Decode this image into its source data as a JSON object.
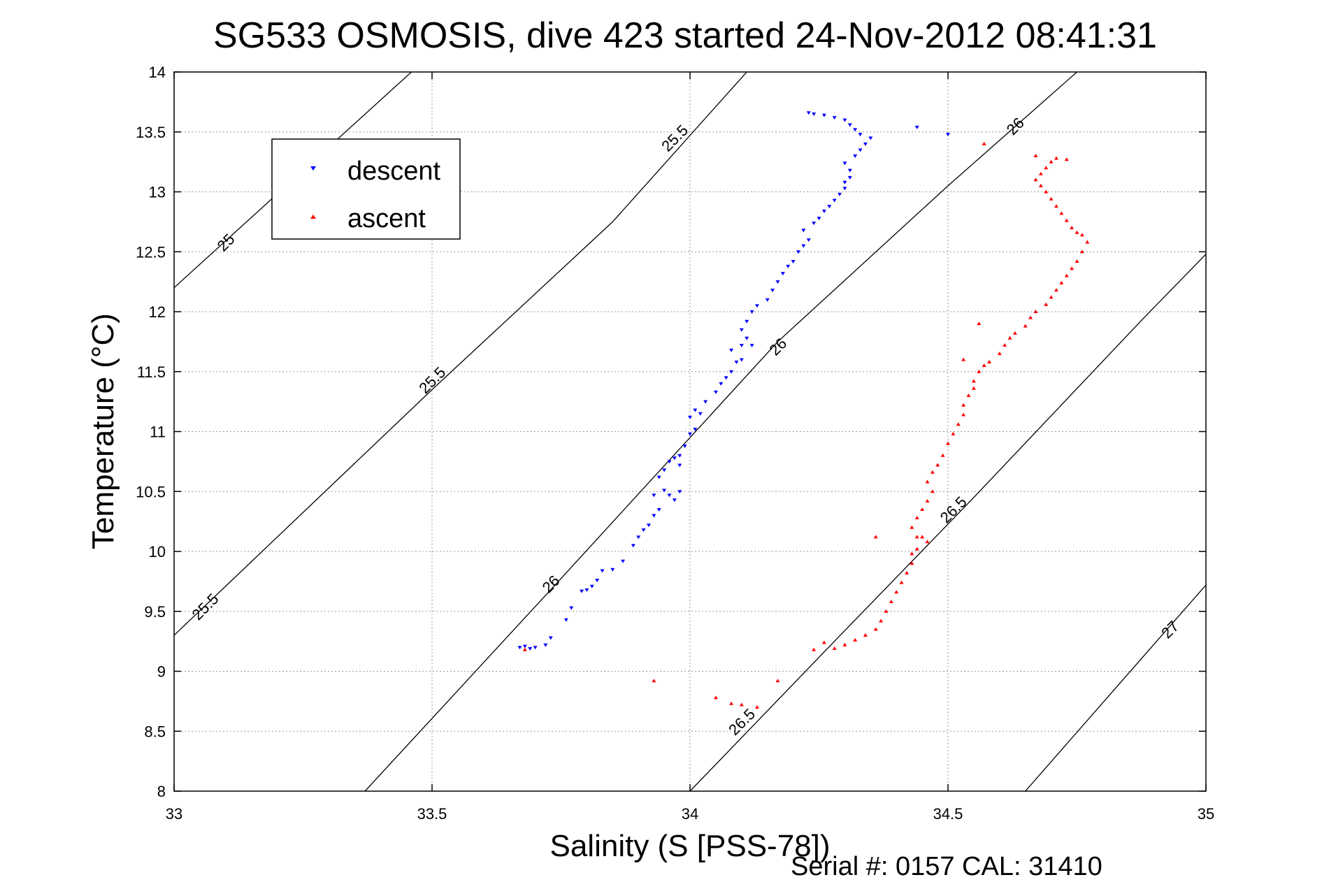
{
  "chart_data": {
    "type": "scatter",
    "title": "SG533 OSMOSIS, dive 423 started 24-Nov-2012 08:41:31",
    "xlabel": "Salinity (S [PSS-78])",
    "ylabel": "Temperature (°C)",
    "xlim": [
      33,
      35
    ],
    "ylim": [
      8,
      14
    ],
    "grid": true,
    "legend_position": "top-left",
    "x_ticks": [
      "33",
      "33.5",
      "34",
      "34.5",
      "35"
    ],
    "y_ticks": [
      "8",
      "8.5",
      "9",
      "9.5",
      "10",
      "10.5",
      "11",
      "11.5",
      "12",
      "12.5",
      "13",
      "13.5",
      "14"
    ],
    "footer": "Serial #: 0157  CAL: 31410",
    "series": [
      {
        "name": "descent",
        "color": "#0000ff",
        "marker": "triangle-down",
        "points": [
          [
            33.67,
            9.2
          ],
          [
            33.68,
            9.21
          ],
          [
            33.69,
            9.19
          ],
          [
            33.7,
            9.2
          ],
          [
            33.72,
            9.22
          ],
          [
            33.73,
            9.28
          ],
          [
            33.76,
            9.43
          ],
          [
            33.77,
            9.53
          ],
          [
            33.79,
            9.67
          ],
          [
            33.8,
            9.68
          ],
          [
            33.81,
            9.71
          ],
          [
            33.82,
            9.76
          ],
          [
            33.83,
            9.84
          ],
          [
            33.85,
            9.85
          ],
          [
            33.87,
            9.92
          ],
          [
            33.89,
            10.05
          ],
          [
            33.9,
            10.12
          ],
          [
            33.91,
            10.18
          ],
          [
            33.92,
            10.22
          ],
          [
            33.93,
            10.3
          ],
          [
            33.94,
            10.35
          ],
          [
            33.93,
            10.47
          ],
          [
            33.95,
            10.51
          ],
          [
            33.96,
            10.47
          ],
          [
            33.97,
            10.43
          ],
          [
            33.98,
            10.5
          ],
          [
            33.94,
            10.62
          ],
          [
            33.95,
            10.68
          ],
          [
            33.96,
            10.75
          ],
          [
            33.97,
            10.78
          ],
          [
            33.98,
            10.72
          ],
          [
            33.98,
            10.8
          ],
          [
            33.99,
            10.88
          ],
          [
            34.0,
            10.98
          ],
          [
            34.01,
            11.02
          ],
          [
            34.0,
            11.12
          ],
          [
            34.01,
            11.18
          ],
          [
            34.02,
            11.15
          ],
          [
            34.03,
            11.25
          ],
          [
            34.05,
            11.33
          ],
          [
            34.06,
            11.4
          ],
          [
            34.07,
            11.45
          ],
          [
            34.08,
            11.5
          ],
          [
            34.09,
            11.58
          ],
          [
            34.1,
            11.6
          ],
          [
            34.08,
            11.68
          ],
          [
            34.1,
            11.72
          ],
          [
            34.12,
            11.72
          ],
          [
            34.11,
            11.78
          ],
          [
            34.1,
            11.85
          ],
          [
            34.11,
            11.92
          ],
          [
            34.12,
            12.0
          ],
          [
            34.13,
            12.05
          ],
          [
            34.15,
            12.1
          ],
          [
            34.16,
            12.18
          ],
          [
            34.17,
            12.25
          ],
          [
            34.18,
            12.32
          ],
          [
            34.19,
            12.38
          ],
          [
            34.2,
            12.42
          ],
          [
            34.21,
            12.5
          ],
          [
            34.22,
            12.55
          ],
          [
            34.23,
            12.6
          ],
          [
            34.22,
            12.68
          ],
          [
            34.24,
            12.74
          ],
          [
            34.25,
            12.78
          ],
          [
            34.26,
            12.84
          ],
          [
            34.27,
            12.88
          ],
          [
            34.28,
            12.93
          ],
          [
            34.29,
            12.98
          ],
          [
            34.3,
            13.03
          ],
          [
            34.3,
            13.08
          ],
          [
            34.31,
            13.12
          ],
          [
            34.31,
            13.18
          ],
          [
            34.3,
            13.24
          ],
          [
            34.32,
            13.3
          ],
          [
            34.33,
            13.35
          ],
          [
            34.34,
            13.4
          ],
          [
            34.35,
            13.45
          ],
          [
            34.33,
            13.48
          ],
          [
            34.32,
            13.52
          ],
          [
            34.31,
            13.56
          ],
          [
            34.3,
            13.6
          ],
          [
            34.28,
            13.62
          ],
          [
            34.26,
            13.64
          ],
          [
            34.24,
            13.65
          ],
          [
            34.23,
            13.66
          ],
          [
            34.44,
            13.54
          ],
          [
            34.5,
            13.48
          ]
        ]
      },
      {
        "name": "ascent",
        "color": "#ff0000",
        "marker": "triangle-up",
        "points": [
          [
            33.68,
            9.18
          ],
          [
            33.93,
            8.92
          ],
          [
            34.05,
            8.78
          ],
          [
            34.08,
            8.73
          ],
          [
            34.1,
            8.72
          ],
          [
            34.13,
            8.7
          ],
          [
            34.17,
            8.92
          ],
          [
            34.24,
            9.18
          ],
          [
            34.26,
            9.24
          ],
          [
            34.28,
            9.19
          ],
          [
            34.3,
            9.22
          ],
          [
            34.32,
            9.26
          ],
          [
            34.34,
            9.3
          ],
          [
            34.36,
            9.35
          ],
          [
            34.37,
            9.42
          ],
          [
            34.38,
            9.5
          ],
          [
            34.39,
            9.58
          ],
          [
            34.4,
            9.66
          ],
          [
            34.41,
            9.74
          ],
          [
            34.42,
            9.82
          ],
          [
            34.43,
            9.9
          ],
          [
            34.43,
            9.98
          ],
          [
            34.44,
            10.02
          ],
          [
            34.46,
            10.08
          ],
          [
            34.45,
            10.12
          ],
          [
            34.43,
            10.2
          ],
          [
            34.44,
            10.28
          ],
          [
            34.45,
            10.35
          ],
          [
            34.46,
            10.42
          ],
          [
            34.47,
            10.5
          ],
          [
            34.46,
            10.58
          ],
          [
            34.47,
            10.66
          ],
          [
            34.48,
            10.72
          ],
          [
            34.49,
            10.8
          ],
          [
            34.5,
            10.9
          ],
          [
            34.51,
            10.98
          ],
          [
            34.52,
            11.06
          ],
          [
            34.53,
            11.14
          ],
          [
            34.53,
            11.22
          ],
          [
            34.54,
            11.3
          ],
          [
            34.55,
            11.36
          ],
          [
            34.55,
            11.42
          ],
          [
            34.56,
            11.5
          ],
          [
            34.57,
            11.55
          ],
          [
            34.58,
            11.58
          ],
          [
            34.6,
            11.65
          ],
          [
            34.61,
            11.72
          ],
          [
            34.62,
            11.78
          ],
          [
            34.63,
            11.82
          ],
          [
            34.65,
            11.88
          ],
          [
            34.66,
            11.95
          ],
          [
            34.67,
            12.0
          ],
          [
            34.69,
            12.06
          ],
          [
            34.7,
            12.12
          ],
          [
            34.71,
            12.18
          ],
          [
            34.72,
            12.24
          ],
          [
            34.73,
            12.3
          ],
          [
            34.74,
            12.36
          ],
          [
            34.75,
            12.42
          ],
          [
            34.76,
            12.5
          ],
          [
            34.77,
            12.58
          ],
          [
            34.76,
            12.64
          ],
          [
            34.75,
            12.66
          ],
          [
            34.74,
            12.7
          ],
          [
            34.73,
            12.76
          ],
          [
            34.72,
            12.82
          ],
          [
            34.71,
            12.88
          ],
          [
            34.7,
            12.94
          ],
          [
            34.69,
            13.0
          ],
          [
            34.68,
            13.05
          ],
          [
            34.67,
            13.1
          ],
          [
            34.68,
            13.15
          ],
          [
            34.69,
            13.2
          ],
          [
            34.7,
            13.25
          ],
          [
            34.71,
            13.28
          ],
          [
            34.73,
            13.27
          ],
          [
            34.67,
            13.3
          ],
          [
            34.56,
            11.9
          ],
          [
            34.53,
            11.6
          ],
          [
            34.44,
            10.12
          ],
          [
            34.36,
            10.12
          ],
          [
            34.57,
            13.4
          ]
        ]
      }
    ],
    "contours": [
      {
        "label": "25",
        "points": [
          [
            33,
            12.2
          ],
          [
            33.46,
            14
          ]
        ],
        "label_at": [
          33.1,
          12.58
        ]
      },
      {
        "label": "25.5",
        "points": [
          [
            33,
            9.3
          ],
          [
            33.5,
            11.35
          ],
          [
            33.85,
            12.75
          ],
          [
            34.11,
            14
          ]
        ],
        "label_at": [
          33.5,
          11.43
        ]
      },
      {
        "label": "26",
        "points": [
          [
            33.37,
            8
          ],
          [
            33.73,
            9.68
          ],
          [
            34.17,
            11.75
          ],
          [
            34.5,
            13.05
          ],
          [
            34.75,
            14
          ]
        ],
        "label_at": [
          34.17,
          11.71
        ]
      },
      {
        "label": "26.5",
        "points": [
          [
            34.0,
            8
          ],
          [
            34.28,
            9.25
          ],
          [
            34.55,
            10.45
          ],
          [
            34.88,
            11.95
          ],
          [
            35,
            12.48
          ]
        ],
        "label_at": [
          34.51,
          10.35
        ]
      },
      {
        "label": "27",
        "points": [
          [
            34.65,
            8
          ],
          [
            35,
            9.72
          ]
        ],
        "label_at": [
          34.93,
          9.35
        ]
      }
    ],
    "contour_extra_labels": [
      {
        "label": "25.5",
        "at": [
          33.06,
          9.54
        ]
      },
      {
        "label": "25.5",
        "at": [
          33.97,
          13.45
        ]
      },
      {
        "label": "26",
        "at": [
          33.73,
          9.73
        ]
      },
      {
        "label": "26",
        "at": [
          34.63,
          13.55
        ]
      },
      {
        "label": "26.5",
        "at": [
          34.1,
          8.58
        ]
      }
    ]
  }
}
